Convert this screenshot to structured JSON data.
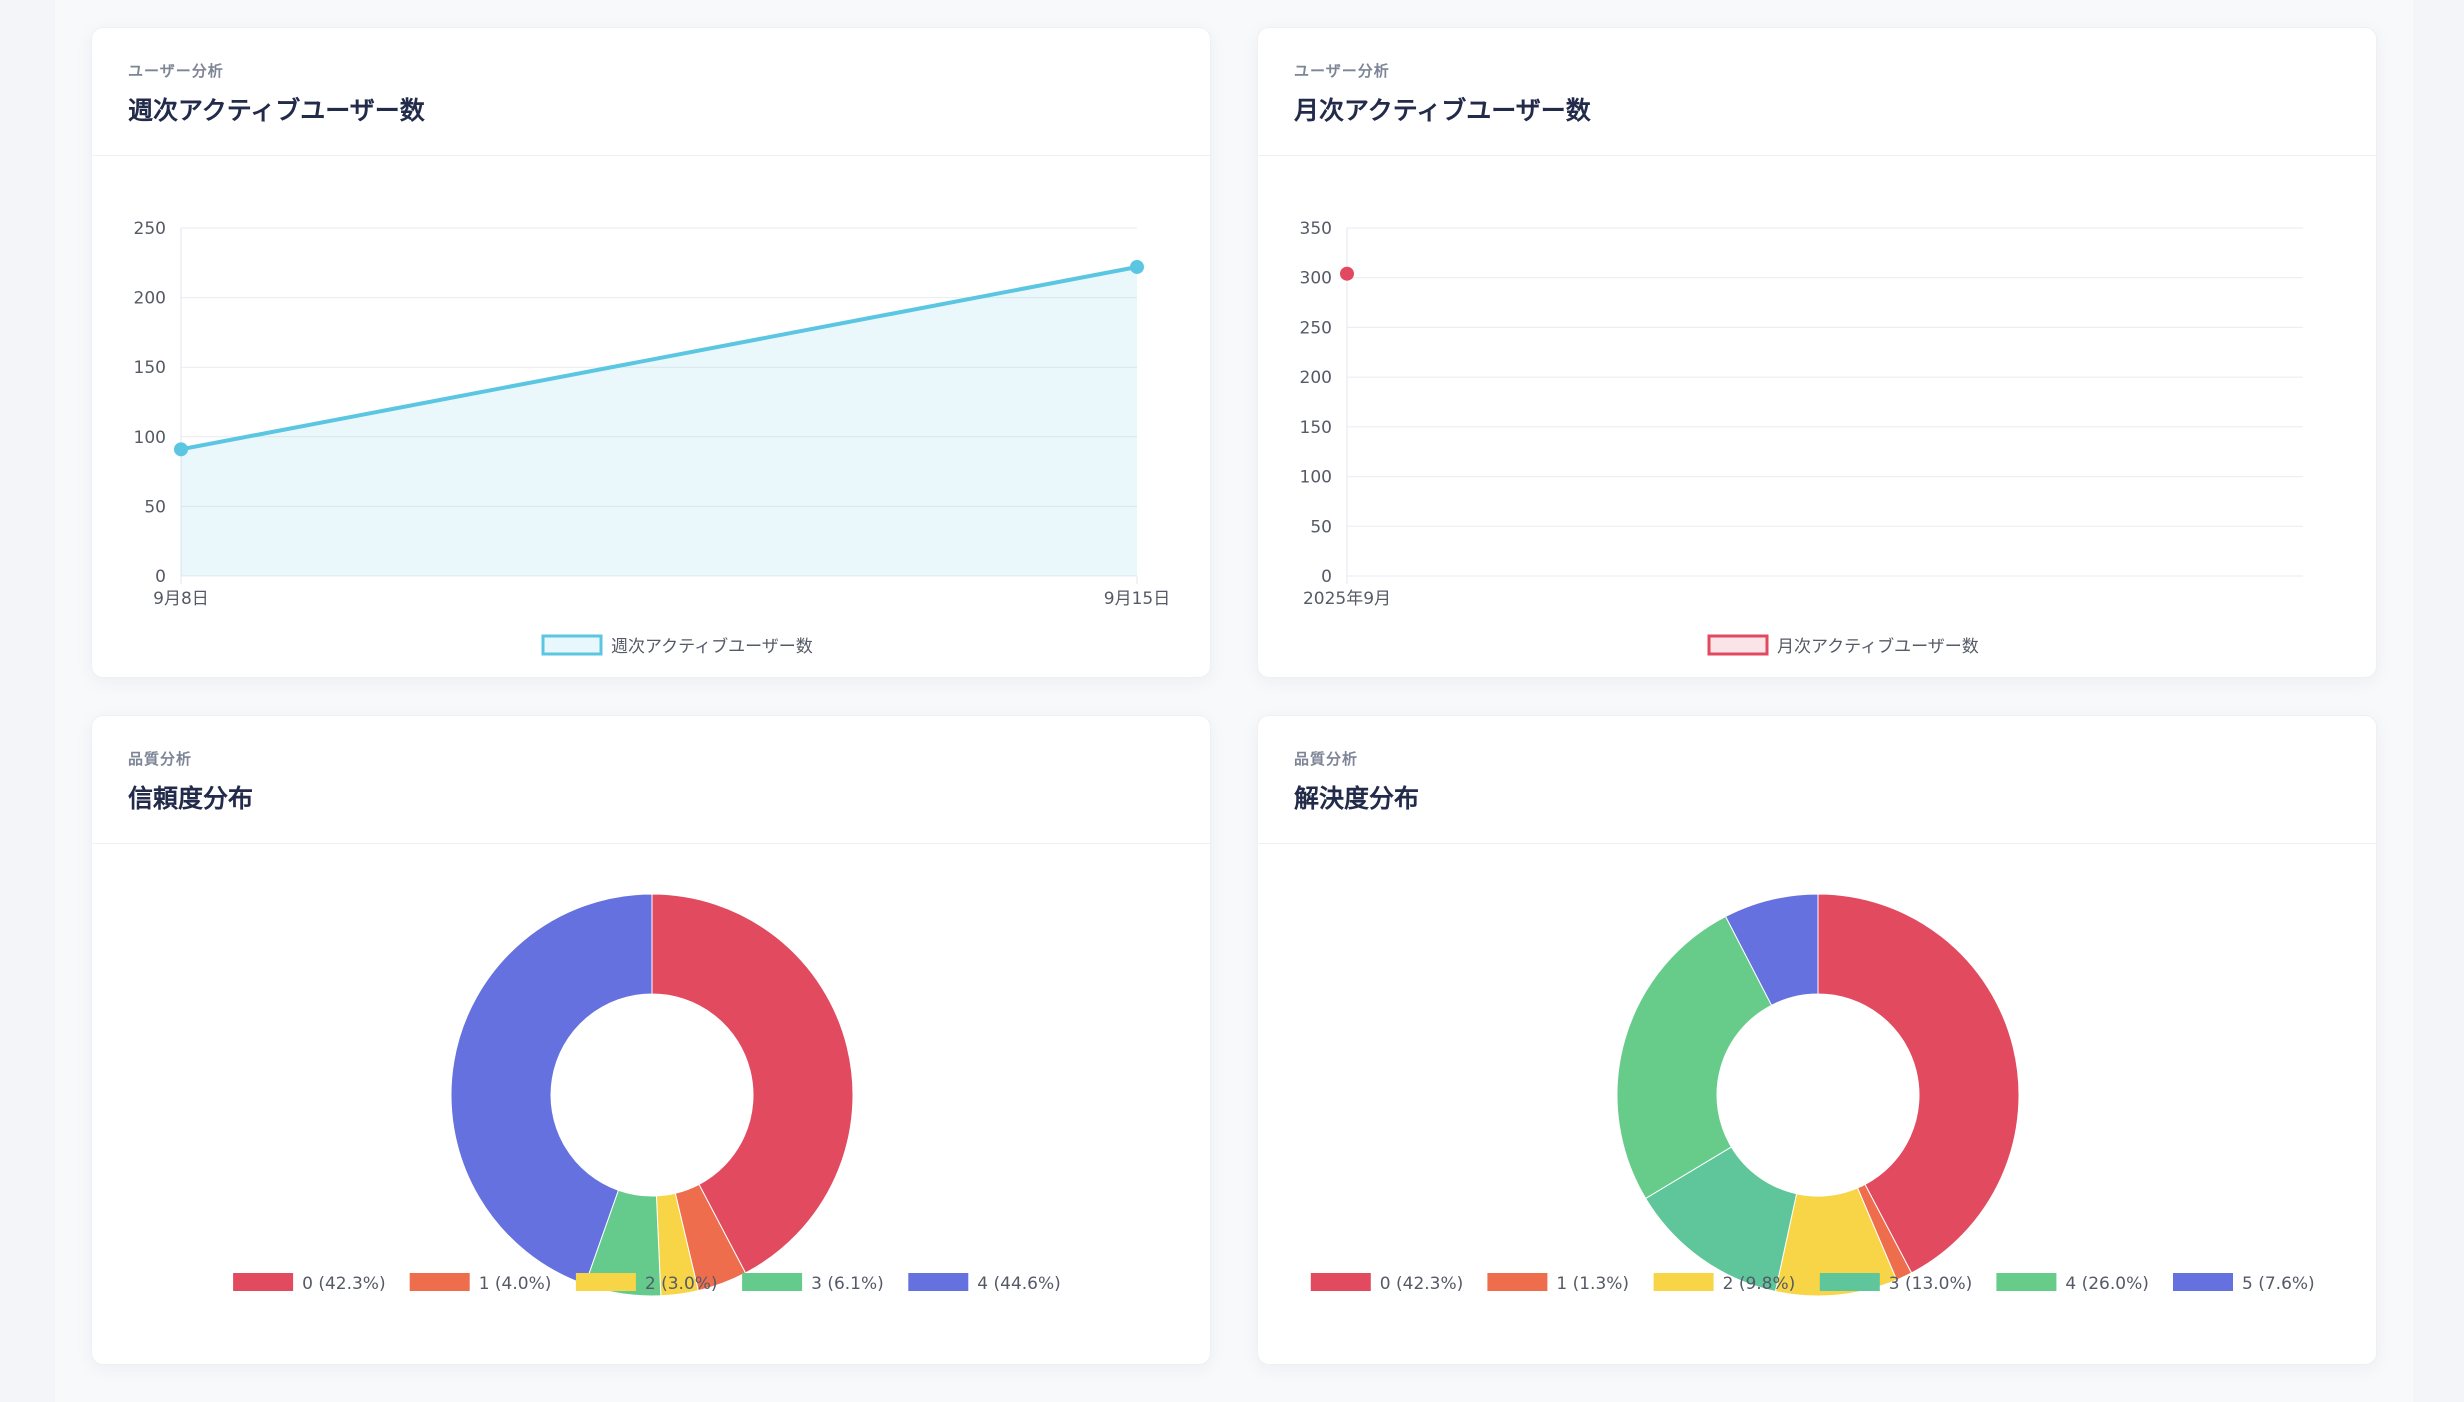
{
  "cards": [
    {
      "eyebrow": "ユーザー分析",
      "title": "週次アクティブユーザー数"
    },
    {
      "eyebrow": "ユーザー分析",
      "title": "月次アクティブユーザー数"
    },
    {
      "eyebrow": "品質分析",
      "title": "信頼度分布"
    },
    {
      "eyebrow": "品質分析",
      "title": "解決度分布"
    }
  ],
  "chart_data": [
    {
      "type": "area",
      "x": [
        "9月8日",
        "9月15日"
      ],
      "series": [
        {
          "name": "週次アクティブユーザー数",
          "values": [
            91,
            222
          ],
          "color": "#5bc6e2"
        }
      ],
      "ylim": [
        0,
        250
      ],
      "yticks": [
        0,
        50,
        100,
        150,
        200,
        250
      ],
      "grid": true,
      "legend": "bottom"
    },
    {
      "type": "line",
      "x": [
        "2025年9月"
      ],
      "series": [
        {
          "name": "月次アクティブユーザー数",
          "values": [
            304
          ],
          "color": "#e2485f"
        }
      ],
      "ylim": [
        0,
        350
      ],
      "yticks": [
        0,
        50,
        100,
        150,
        200,
        250,
        300,
        350
      ],
      "grid": true,
      "legend": "bottom"
    },
    {
      "type": "pie",
      "labels": [
        "0 (42.3%)",
        "1 (4.0%)",
        "2 (3.0%)",
        "3 (6.1%)",
        "4 (44.6%)"
      ],
      "values": [
        42.3,
        4.0,
        3.0,
        6.1,
        44.6
      ],
      "colors": [
        "#e24a60",
        "#ee6d4d",
        "#f7d547",
        "#64cb8c",
        "#6571df"
      ],
      "legend": "bottom"
    },
    {
      "type": "pie",
      "labels": [
        "0 (42.3%)",
        "1 (1.3%)",
        "2 (9.8%)",
        "3 (13.0%)",
        "4 (26.0%)",
        "5 (7.6%)"
      ],
      "values": [
        42.3,
        1.3,
        9.8,
        13.0,
        26.0,
        7.6
      ],
      "colors": [
        "#e24a60",
        "#ee6d4d",
        "#f7d547",
        "#5ec69a",
        "#67cc89",
        "#6571df"
      ],
      "legend": "bottom"
    }
  ]
}
